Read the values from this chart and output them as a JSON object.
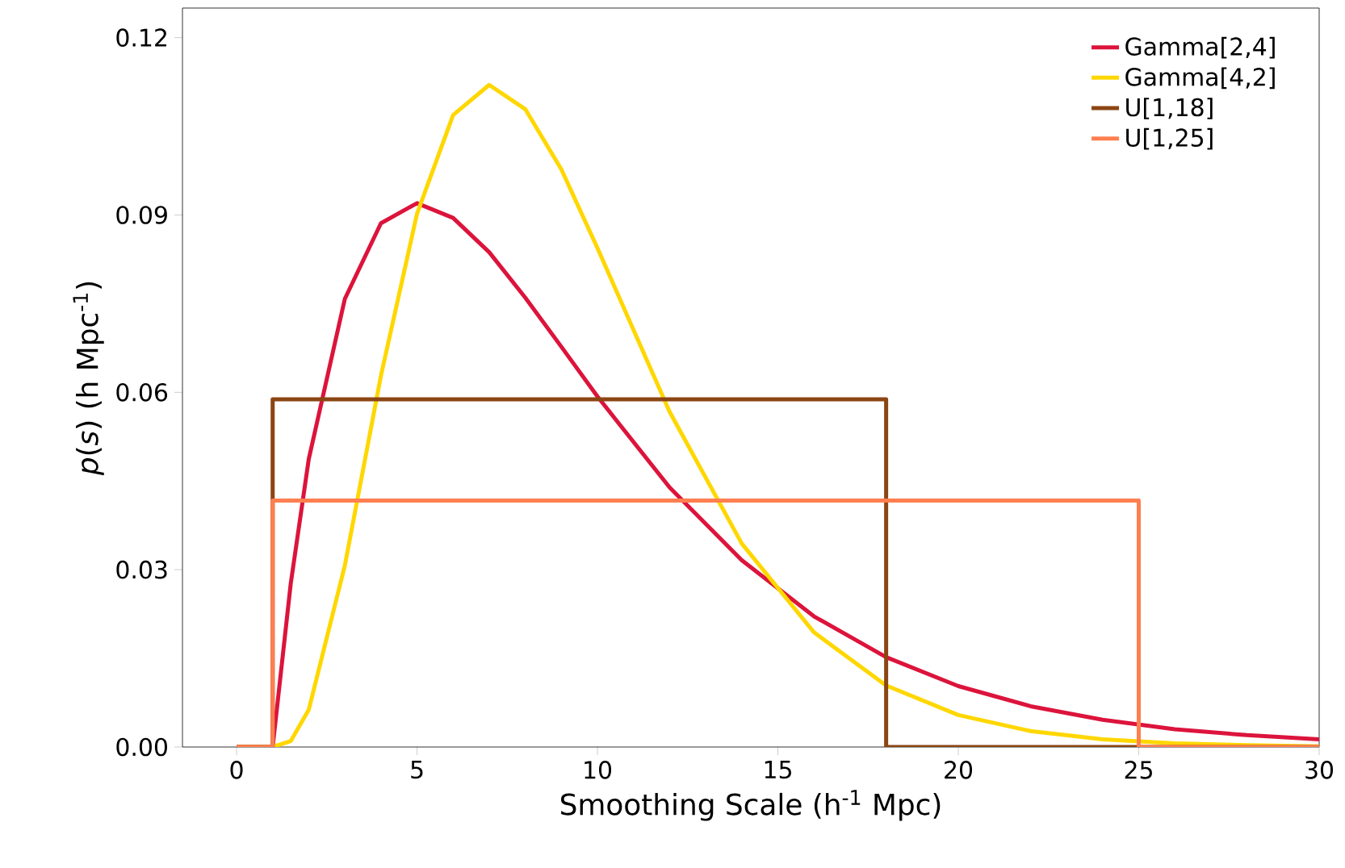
{
  "chart_data": {
    "type": "line",
    "xlabel": "Smoothing Scale (h$^{-1}$ Mpc)",
    "ylabel": "*p*(*s*) (h Mpc$^{-1}$)",
    "xlim": [
      -1.5,
      30
    ],
    "ylim": [
      0,
      0.125
    ],
    "xticks": [
      0,
      5,
      10,
      15,
      20,
      25,
      30
    ],
    "yticks": [
      {
        "value": 0,
        "label": "0.00"
      },
      {
        "value": 0.03,
        "label": "0.03"
      },
      {
        "value": 0.06,
        "label": "0.06"
      },
      {
        "value": 0.09,
        "label": "0.09"
      },
      {
        "value": 0.12,
        "label": "0.12"
      }
    ],
    "legend": "top right",
    "grid": false,
    "line_style": "solid",
    "marker": "none",
    "series": [
      {
        "name": "Gamma[2,4]",
        "color": "#dc143c",
        "x": [
          0,
          1,
          1.5,
          2,
          3,
          4,
          5,
          6,
          7,
          8,
          9,
          10,
          12,
          14,
          16,
          18,
          20,
          22,
          24,
          26,
          28,
          30
        ],
        "values": [
          0,
          0,
          0.0276,
          0.0487,
          0.0758,
          0.0886,
          0.092,
          0.0895,
          0.0837,
          0.076,
          0.0677,
          0.0593,
          0.0439,
          0.0316,
          0.0221,
          0.0152,
          0.0103,
          0.0069,
          0.0046,
          0.003,
          0.002,
          0.0013
        ]
      },
      {
        "name": "Gamma[4,2]",
        "color": "#ffd700",
        "x": [
          0,
          1,
          1.5,
          2,
          3,
          4,
          5,
          6,
          7,
          8,
          9,
          10,
          12,
          14,
          16,
          18,
          20,
          22,
          24,
          26,
          28,
          30
        ],
        "values": [
          0,
          0,
          0.001,
          0.0063,
          0.0307,
          0.0628,
          0.0902,
          0.1069,
          0.112,
          0.1079,
          0.0977,
          0.0844,
          0.0567,
          0.0344,
          0.0194,
          0.0104,
          0.0054,
          0.0027,
          0.0013,
          0.0006,
          0.0003,
          0.0001
        ]
      },
      {
        "name": "U[1,18]",
        "color": "#8b4513",
        "x": [
          0,
          1,
          1,
          18,
          18,
          30
        ],
        "values": [
          0,
          0,
          0.0588,
          0.0588,
          0,
          0
        ]
      },
      {
        "name": "U[1,25]",
        "color": "#ff7f50",
        "x": [
          0,
          1,
          1,
          25,
          25,
          30
        ],
        "values": [
          0,
          0,
          0.0417,
          0.0417,
          0,
          0
        ]
      }
    ]
  }
}
